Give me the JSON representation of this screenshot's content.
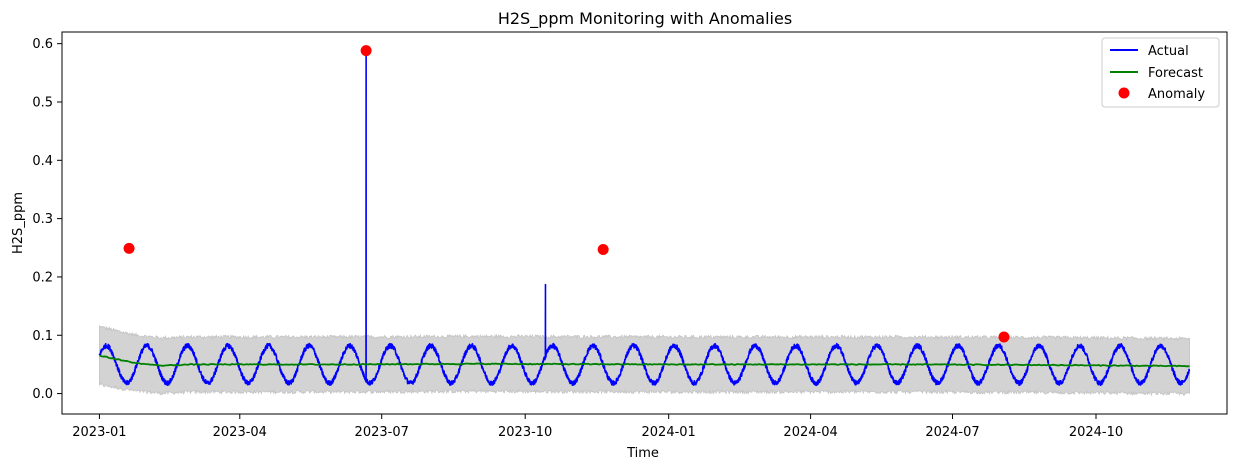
{
  "chart_data": {
    "type": "line",
    "title": "H2S_ppm Monitoring with Anomalies",
    "xlabel": "Time",
    "ylabel": "H2S_ppm",
    "x_range": [
      "2022-12-08",
      "2024-12-24"
    ],
    "ylim": [
      -0.035,
      0.62
    ],
    "x_ticks": [
      "2023-01",
      "2023-04",
      "2023-07",
      "2023-10",
      "2024-01",
      "2024-04",
      "2024-07",
      "2024-10"
    ],
    "y_ticks": [
      0.0,
      0.1,
      0.2,
      0.3,
      0.4,
      0.5,
      0.6
    ],
    "y_tick_labels": [
      "0.0",
      "0.1",
      "0.2",
      "0.3",
      "0.4",
      "0.5",
      "0.6"
    ],
    "grid": false,
    "legend_position": "top-right",
    "series": [
      {
        "name": "Actual",
        "kind": "line",
        "color": "#0000ff",
        "start": "2023-01-01",
        "end": "2024-11-30",
        "baseline": 0.05,
        "amplitude": 0.032,
        "period_days": 26,
        "spikes": [
          {
            "date": "2023-06-21",
            "value": 0.588
          },
          {
            "date": "2023-10-14",
            "value": 0.187
          }
        ]
      },
      {
        "name": "Forecast",
        "kind": "line",
        "color": "#008000",
        "points": [
          {
            "date": "2023-01-01",
            "value": 0.065
          },
          {
            "date": "2023-01-10",
            "value": 0.06
          },
          {
            "date": "2023-01-25",
            "value": 0.052
          },
          {
            "date": "2023-02-10",
            "value": 0.048
          },
          {
            "date": "2023-03-01",
            "value": 0.05
          },
          {
            "date": "2023-06-01",
            "value": 0.05
          },
          {
            "date": "2023-09-01",
            "value": 0.051
          },
          {
            "date": "2024-01-01",
            "value": 0.05
          },
          {
            "date": "2024-06-01",
            "value": 0.05
          },
          {
            "date": "2024-09-01",
            "value": 0.049
          },
          {
            "date": "2024-11-30",
            "value": 0.047
          }
        ]
      },
      {
        "name": "Anomaly",
        "kind": "scatter",
        "color": "#ff0000",
        "points": [
          {
            "date": "2023-01-20",
            "value": 0.249
          },
          {
            "date": "2023-06-21",
            "value": 0.588
          },
          {
            "date": "2023-11-20",
            "value": 0.247
          },
          {
            "date": "2024-08-03",
            "value": 0.097
          }
        ]
      }
    ],
    "confidence_band": {
      "color": "#d3d3d3",
      "half_width_start": 0.05,
      "half_width": 0.047
    }
  }
}
